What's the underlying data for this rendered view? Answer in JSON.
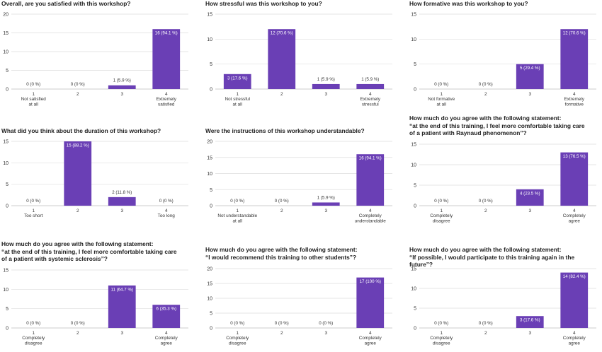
{
  "chart_data": [
    {
      "type": "bar",
      "title": "Overall, are you satisfied with this workshop?",
      "categories": [
        "1\nNot satisfied\nat all",
        "2",
        "3",
        "4\nExtremely\nsatisfied"
      ],
      "values": [
        0,
        0,
        1,
        16
      ],
      "labels": [
        "0 (0 %)",
        "0 (0 %)",
        "1 (5.9 %)",
        "16 (94.1 %)"
      ],
      "ylim": [
        0,
        20
      ],
      "yticks": [
        0,
        5,
        10,
        15,
        20
      ],
      "grid": true
    },
    {
      "type": "bar",
      "title": "How stressful was this workshop to you?",
      "categories": [
        "1\nNot stressful\nat all",
        "2",
        "3",
        "4\nExtremely\nstressful"
      ],
      "values": [
        3,
        12,
        1,
        1
      ],
      "labels": [
        "3 (17.6 %)",
        "12 (70.6 %)",
        "1 (5.9 %)",
        "1 (5.9 %)"
      ],
      "ylim": [
        0,
        15
      ],
      "yticks": [
        0,
        5,
        10,
        15
      ],
      "grid": true
    },
    {
      "type": "bar",
      "title": "How formative was this workshop to you?",
      "categories": [
        "1\nNot formative\nat all",
        "2",
        "3",
        "4\nExtremely\nformative"
      ],
      "values": [
        0,
        0,
        5,
        12
      ],
      "labels": [
        "0 (0 %)",
        "0 (0 %)",
        "5 (29.4 %)",
        "12 (70.6 %)"
      ],
      "ylim": [
        0,
        15
      ],
      "yticks": [
        0,
        5,
        10,
        15
      ],
      "grid": true
    },
    {
      "type": "bar",
      "title": "What did you think about the duration of this workshop?",
      "categories": [
        "1\nToo short",
        "2",
        "3",
        "4\nToo long"
      ],
      "values": [
        0,
        15,
        2,
        0
      ],
      "labels": [
        "0 (0 %)",
        "15 (88.2 %)",
        "2 (11.8 %)",
        "0 (0 %)"
      ],
      "ylim": [
        0,
        15
      ],
      "yticks": [
        0,
        5,
        10,
        15
      ],
      "grid": true
    },
    {
      "type": "bar",
      "title": "Were the instructions of this workshop understandable?",
      "categories": [
        "1\nNot understandable\nat all",
        "2",
        "3",
        "4\nCompletely\nunderstandable"
      ],
      "values": [
        0,
        0,
        1,
        16
      ],
      "labels": [
        "0 (0 %)",
        "0 (0 %)",
        "1 (5.9 %)",
        "16 (94.1 %)"
      ],
      "ylim": [
        0,
        20
      ],
      "yticks": [
        0,
        5,
        10,
        15,
        20
      ],
      "grid": true
    },
    {
      "type": "bar",
      "title": "How much do you agree with the following statement:\n“at the end of this training, I feel more comfortable taking care\nof a patient with Raynaud phenomenon”?",
      "categories": [
        "1\nCompletely\ndisagree",
        "2",
        "3",
        "4\nCompletely\nagree"
      ],
      "values": [
        0,
        0,
        4,
        13
      ],
      "labels": [
        "0 (0 %)",
        "0 (0 %)",
        "4 (23.5 %)",
        "13 (76.5 %)"
      ],
      "ylim": [
        0,
        15
      ],
      "yticks": [
        0,
        5,
        10,
        15
      ],
      "grid": true
    },
    {
      "type": "bar",
      "title": "How much do you agree with the following statement:\n“at the end of this training, I feel more comfortable taking care\nof a patient with systemic sclerosis”?",
      "categories": [
        "1\nCompletely\ndisagree",
        "2",
        "3",
        "4\nCompletely\nagree"
      ],
      "values": [
        0,
        0,
        11,
        6
      ],
      "labels": [
        "0 (0 %)",
        "0 (0 %)",
        "11 (64.7 %)",
        "6 (35.3 %)"
      ],
      "ylim": [
        0,
        15
      ],
      "yticks": [
        0,
        5,
        10,
        15
      ],
      "grid": true
    },
    {
      "type": "bar",
      "title": "How much do you agree with the following statement:\n“I would recommend this training to other students”?",
      "categories": [
        "1\nCompletely\ndisagree",
        "2",
        "3",
        "4\nCompletely\nagree"
      ],
      "values": [
        0,
        0,
        0,
        17
      ],
      "labels": [
        "0 (0 %)",
        "0 (0 %)",
        "0 (0 %)",
        "17 (100 %)"
      ],
      "ylim": [
        0,
        20
      ],
      "yticks": [
        0,
        5,
        10,
        15,
        20
      ],
      "grid": true
    },
    {
      "type": "bar",
      "title": "How much do you agree with the following statement:\n“If possible, I would participate to this training again in the future”?",
      "categories": [
        "1\nCompletely\ndisagree",
        "2",
        "3",
        "4\nCompletely\nagree"
      ],
      "values": [
        0,
        0,
        3,
        14
      ],
      "labels": [
        "0 (0 %)",
        "0 (0 %)",
        "3 (17.6 %)",
        "14 (82.4 %)"
      ],
      "ylim": [
        0,
        15
      ],
      "yticks": [
        0,
        5,
        10,
        15
      ],
      "grid": true
    }
  ],
  "colors": {
    "bar": "#6a3fb5",
    "grid": "#dddddd",
    "axis": "#bbbbbb",
    "text": "#333333"
  }
}
